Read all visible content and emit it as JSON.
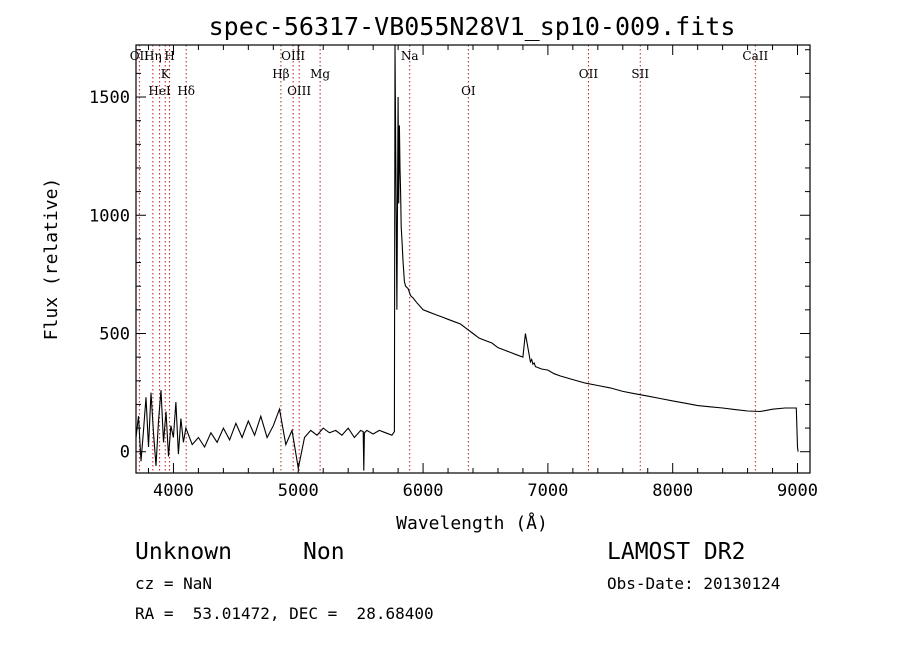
{
  "chart_data": {
    "type": "line",
    "title": "spec-56317-VB055N28V1_sp10-009.fits",
    "xlabel": "Wavelength (Å)",
    "ylabel": "Flux (relative)",
    "xlim": [
      3700,
      9100
    ],
    "ylim": [
      -90,
      1720
    ],
    "x_ticks": [
      4000,
      5000,
      6000,
      7000,
      8000,
      9000
    ],
    "y_ticks": [
      0,
      500,
      1000,
      1500
    ],
    "x_tick_labels": [
      "4000",
      "5000",
      "6000",
      "7000",
      "8000",
      "9000"
    ],
    "y_tick_labels": [
      "0",
      "500",
      "1000",
      "1500"
    ],
    "grid": false,
    "line_color": "#000000",
    "marker_color": "#b22222",
    "series": [
      {
        "x": [
          3700,
          3720,
          3740,
          3760,
          3780,
          3800,
          3820,
          3840,
          3860,
          3880,
          3900,
          3920,
          3940,
          3960,
          3980,
          4000,
          4020,
          4040,
          4060,
          4080,
          4100,
          4150,
          4200,
          4250,
          4300,
          4350,
          4400,
          4450,
          4500,
          4550,
          4600,
          4650,
          4700,
          4750,
          4800,
          4850,
          4900,
          4950,
          5000,
          5050,
          5100,
          5150,
          5200,
          5250,
          5300,
          5350,
          5400,
          5450,
          5500,
          5520,
          5525,
          5530,
          5550,
          5600,
          5650,
          5700,
          5750,
          5770,
          5775,
          5780,
          5790,
          5800,
          5805,
          5810,
          5815,
          5820,
          5825,
          5830,
          5840,
          5850,
          5860,
          5880,
          5900,
          5920,
          5950,
          6000,
          6050,
          6100,
          6150,
          6200,
          6250,
          6300,
          6350,
          6400,
          6450,
          6500,
          6550,
          6600,
          6650,
          6700,
          6750,
          6800,
          6820,
          6840,
          6860,
          6870,
          6880,
          6890,
          6900,
          6950,
          7000,
          7050,
          7100,
          7200,
          7300,
          7400,
          7500,
          7600,
          7700,
          7800,
          7900,
          8000,
          8100,
          8200,
          8300,
          8400,
          8500,
          8600,
          8700,
          8800,
          8900,
          8990,
          9000,
          9005
        ],
        "y": [
          60,
          150,
          -40,
          90,
          230,
          20,
          250,
          80,
          -60,
          130,
          260,
          40,
          170,
          -20,
          110,
          60,
          210,
          -10,
          140,
          40,
          100,
          30,
          60,
          20,
          80,
          40,
          100,
          50,
          120,
          60,
          130,
          70,
          150,
          60,
          110,
          180,
          30,
          90,
          -70,
          60,
          90,
          70,
          100,
          80,
          90,
          70,
          100,
          60,
          90,
          85,
          -80,
          80,
          90,
          75,
          90,
          80,
          70,
          85,
          1720,
          1350,
          600,
          1500,
          1050,
          1380,
          1200,
          1100,
          950,
          900,
          800,
          720,
          700,
          690,
          660,
          650,
          630,
          600,
          590,
          580,
          570,
          560,
          550,
          540,
          520,
          500,
          480,
          470,
          460,
          440,
          430,
          420,
          410,
          400,
          500,
          440,
          380,
          390,
          370,
          375,
          360,
          350,
          345,
          330,
          320,
          305,
          290,
          280,
          270,
          255,
          245,
          235,
          225,
          215,
          205,
          195,
          190,
          185,
          178,
          172,
          170,
          180,
          185,
          185,
          20,
          0
        ]
      }
    ],
    "markers": [
      {
        "label": "OII",
        "x": 3727
      },
      {
        "label": "Hη",
        "x": 3835
      },
      {
        "label": "HeI",
        "x": 3889
      },
      {
        "label": "K",
        "x": 3934
      },
      {
        "label": "H",
        "x": 3969
      },
      {
        "label": "Hδ",
        "x": 4102
      },
      {
        "label": "Hβ",
        "x": 4861
      },
      {
        "label": "OIII",
        "x": 4959
      },
      {
        "label": "OIII",
        "x": 5007
      },
      {
        "label": "Mg",
        "x": 5175
      },
      {
        "label": "Na",
        "x": 5893
      },
      {
        "label": "OI",
        "x": 6363
      },
      {
        "label": "OII",
        "x": 7325
      },
      {
        "label": "SII",
        "x": 7740
      },
      {
        "label": "CaII",
        "x": 8662
      }
    ]
  },
  "info": {
    "object_class": "Unknown",
    "subclass": "Non",
    "survey": "LAMOST DR2",
    "cz": "cz = NaN",
    "obs_date": "Obs-Date: 20130124",
    "coords": "RA =  53.01472, DEC =  28.68400"
  }
}
